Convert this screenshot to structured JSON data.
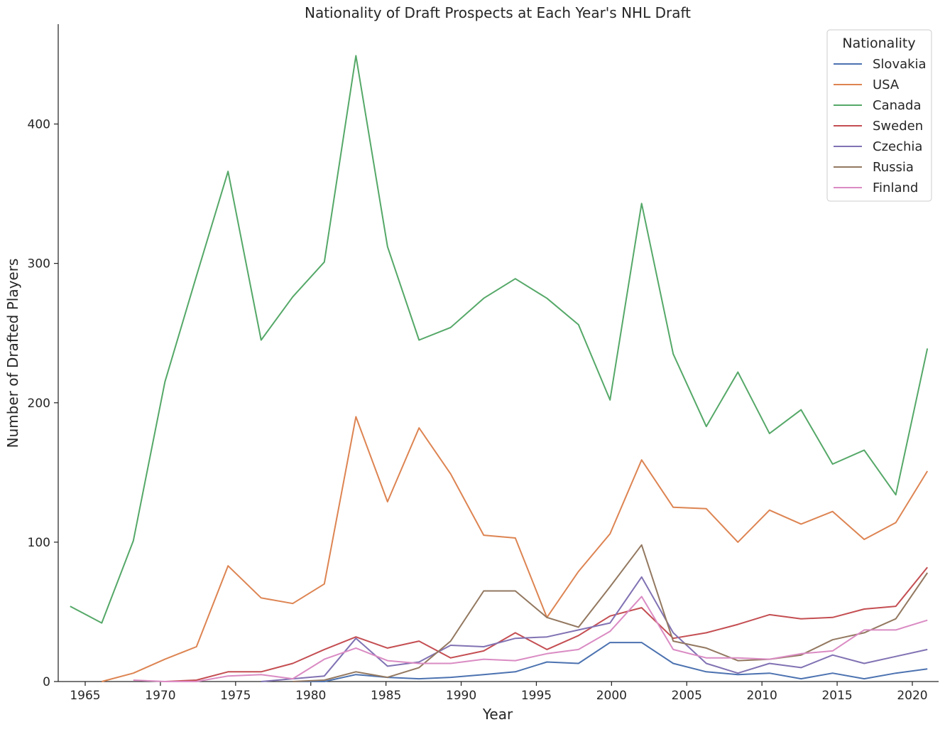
{
  "chart_data": {
    "type": "line",
    "title": "Nationality of Draft Prospects at Each Year's NHL Draft",
    "xlabel": "Year",
    "ylabel": "Number of Drafted Players",
    "xlim": [
      1963,
      2022
    ],
    "ylim": [
      0,
      450
    ],
    "x_ticks": [
      1965,
      1970,
      1975,
      1980,
      1985,
      1990,
      1995,
      2000,
      2005,
      2010,
      2015,
      2020
    ],
    "y_ticks": [
      0,
      100,
      200,
      300,
      400
    ],
    "grid": false,
    "legend": {
      "title": "Nationality",
      "position": "top-right"
    },
    "x": [
      1964.0,
      1966.1,
      1968.2,
      1970.3,
      1972.4,
      1974.5,
      1976.7,
      1978.8,
      1980.9,
      1983.0,
      1985.1,
      1987.2,
      1989.3,
      1991.5,
      1993.6,
      1995.7,
      1997.8,
      1999.9,
      2002.0,
      2004.1,
      2006.3,
      2008.4,
      2010.5,
      2012.6,
      2014.7,
      2016.8,
      2018.9,
      2021.0
    ],
    "series": [
      {
        "name": "Slovakia",
        "color": "#4c72b0",
        "values": [
          null,
          null,
          null,
          null,
          null,
          null,
          null,
          0,
          0,
          5,
          3,
          2,
          3,
          5,
          7,
          14,
          13,
          28,
          28,
          13,
          7,
          5,
          6,
          2,
          6,
          2,
          6,
          9
        ]
      },
      {
        "name": "USA",
        "color": "#dd8452",
        "values": [
          null,
          0,
          6,
          16,
          25,
          83,
          60,
          56,
          70,
          190,
          129,
          182,
          149,
          105,
          103,
          46,
          79,
          106,
          159,
          125,
          124,
          100,
          123,
          113,
          122,
          102,
          114,
          151
        ]
      },
      {
        "name": "Canada",
        "color": "#55a868",
        "values": [
          54,
          42,
          101,
          215,
          291,
          366,
          245,
          276,
          301,
          449,
          312,
          245,
          254,
          275,
          289,
          275,
          256,
          202,
          343,
          235,
          183,
          222,
          178,
          195,
          156,
          166,
          134,
          239
        ]
      },
      {
        "name": "Sweden",
        "color": "#c44e52",
        "values": [
          null,
          null,
          null,
          0,
          1,
          7,
          7,
          13,
          23,
          32,
          24,
          29,
          17,
          22,
          35,
          23,
          33,
          47,
          53,
          31,
          35,
          41,
          48,
          45,
          46,
          52,
          54,
          82
        ]
      },
      {
        "name": "Czechia",
        "color": "#8172b3",
        "values": [
          null,
          null,
          null,
          null,
          null,
          null,
          0,
          2,
          4,
          31,
          11,
          14,
          26,
          25,
          31,
          32,
          37,
          42,
          75,
          35,
          13,
          6,
          13,
          10,
          19,
          13,
          18,
          23
        ]
      },
      {
        "name": "Russia",
        "color": "#937860",
        "values": [
          null,
          null,
          null,
          null,
          null,
          null,
          null,
          0,
          1,
          7,
          3,
          10,
          29,
          65,
          65,
          46,
          39,
          68,
          98,
          29,
          24,
          15,
          16,
          19,
          30,
          35,
          45,
          78
        ]
      },
      {
        "name": "Finland",
        "color": "#da8bc3",
        "values": [
          null,
          null,
          1,
          0,
          0,
          4,
          5,
          2,
          16,
          24,
          15,
          13,
          13,
          16,
          15,
          20,
          23,
          36,
          61,
          23,
          17,
          17,
          16,
          20,
          22,
          37,
          37,
          44
        ]
      }
    ]
  }
}
